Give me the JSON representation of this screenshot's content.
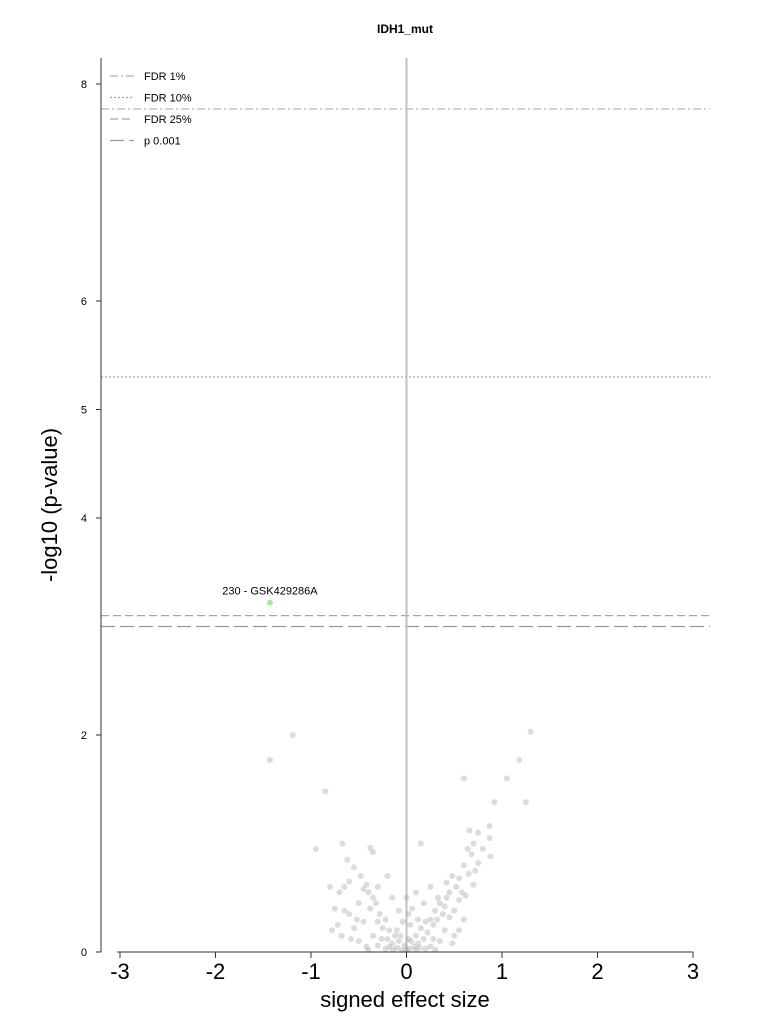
{
  "chart_data": {
    "type": "scatter",
    "title": "IDH1_mut",
    "xlabel": "signed effect size",
    "ylabel": "-log10 (p-value)",
    "xlim": [
      -3.15,
      3.2
    ],
    "ylim": [
      0,
      8.25
    ],
    "x_ticks": [
      "-3",
      "-2",
      "-1",
      "0",
      "1",
      "2",
      "3"
    ],
    "y_ticks": [
      "0",
      "2",
      "4",
      "5",
      "6",
      "8"
    ],
    "grid": false,
    "legend_position": "top-left",
    "thresholds": [
      {
        "name": "FDR 1%",
        "y": 7.77,
        "style": "dashdot",
        "color": "#b0b0b0"
      },
      {
        "name": "FDR 10%",
        "y": 5.3,
        "style": "dotted",
        "color": "#a0a0a0"
      },
      {
        "name": "FDR 25%",
        "y": 3.1,
        "style": "dashed",
        "color": "#a8a8a8"
      },
      {
        "name": "p 0.001",
        "y": 3.0,
        "style": "longdash",
        "color": "#999999"
      }
    ],
    "highlight": {
      "x": -1.43,
      "y": 3.22,
      "label": "230 - GSK429286A",
      "color": "#a6e8a0"
    },
    "points": [
      [
        -1.43,
        1.77
      ],
      [
        -1.19,
        2.0
      ],
      [
        -0.85,
        1.48
      ],
      [
        -0.95,
        0.95
      ],
      [
        -0.67,
        1.0
      ],
      [
        -0.38,
        0.96
      ],
      [
        -0.35,
        0.92
      ],
      [
        0.15,
        1.0
      ],
      [
        0.6,
        1.6
      ],
      [
        1.05,
        1.6
      ],
      [
        1.3,
        2.03
      ],
      [
        1.18,
        1.77
      ],
      [
        1.25,
        1.38
      ],
      [
        0.92,
        1.38
      ],
      [
        0.87,
        1.16
      ],
      [
        0.87,
        1.05
      ],
      [
        0.88,
        0.88
      ],
      [
        0.75,
        1.1
      ],
      [
        0.7,
        1.0
      ],
      [
        0.66,
        1.12
      ],
      [
        0.68,
        0.9
      ],
      [
        0.6,
        0.8
      ],
      [
        0.65,
        0.72
      ],
      [
        0.55,
        0.68
      ],
      [
        0.52,
        0.6
      ],
      [
        0.48,
        0.7
      ],
      [
        0.45,
        0.55
      ],
      [
        0.42,
        0.5
      ],
      [
        0.4,
        0.42
      ],
      [
        0.38,
        0.35
      ],
      [
        0.35,
        0.45
      ],
      [
        0.32,
        0.3
      ],
      [
        0.3,
        0.38
      ],
      [
        0.28,
        0.25
      ],
      [
        0.25,
        0.3
      ],
      [
        0.22,
        0.18
      ],
      [
        0.2,
        0.28
      ],
      [
        0.18,
        0.12
      ],
      [
        0.15,
        0.22
      ],
      [
        0.12,
        0.08
      ],
      [
        0.1,
        0.15
      ],
      [
        0.08,
        0.05
      ],
      [
        0.05,
        0.1
      ],
      [
        0.03,
        0.03
      ],
      [
        0.02,
        0.12
      ],
      [
        0.0,
        0.02
      ],
      [
        -0.02,
        0.06
      ],
      [
        -0.05,
        0.02
      ],
      [
        -0.08,
        0.1
      ],
      [
        -0.1,
        0.04
      ],
      [
        -0.12,
        0.15
      ],
      [
        -0.15,
        0.08
      ],
      [
        -0.18,
        0.2
      ],
      [
        -0.2,
        0.12
      ],
      [
        -0.22,
        0.3
      ],
      [
        -0.25,
        0.22
      ],
      [
        -0.28,
        0.35
      ],
      [
        -0.3,
        0.28
      ],
      [
        -0.32,
        0.45
      ],
      [
        -0.35,
        0.5
      ],
      [
        -0.38,
        0.4
      ],
      [
        -0.4,
        0.55
      ],
      [
        -0.42,
        0.62
      ],
      [
        -0.45,
        0.58
      ],
      [
        -0.48,
        0.7
      ],
      [
        -0.5,
        0.45
      ],
      [
        -0.55,
        0.78
      ],
      [
        -0.6,
        0.65
      ],
      [
        -0.62,
        0.85
      ],
      [
        -0.65,
        0.6
      ],
      [
        -0.7,
        0.55
      ],
      [
        -0.75,
        0.4
      ],
      [
        -0.8,
        0.6
      ],
      [
        -0.72,
        0.25
      ],
      [
        -0.68,
        0.15
      ],
      [
        -0.6,
        0.35
      ],
      [
        -0.55,
        0.22
      ],
      [
        -0.5,
        0.1
      ],
      [
        -0.45,
        0.28
      ],
      [
        -0.42,
        0.05
      ],
      [
        -0.35,
        0.15
      ],
      [
        -0.3,
        0.06
      ],
      [
        -0.26,
        0.12
      ],
      [
        -0.22,
        0.03
      ],
      [
        -0.18,
        0.05
      ],
      [
        -0.14,
        0.02
      ],
      [
        -0.1,
        0.2
      ],
      [
        -0.06,
        0.15
      ],
      [
        -0.04,
        0.28
      ],
      [
        0.0,
        0.5
      ],
      [
        0.02,
        0.35
      ],
      [
        0.04,
        0.25
      ],
      [
        0.06,
        0.4
      ],
      [
        0.1,
        0.02
      ],
      [
        0.14,
        0.04
      ],
      [
        0.2,
        0.03
      ],
      [
        0.25,
        0.05
      ],
      [
        0.3,
        0.02
      ],
      [
        0.35,
        0.1
      ],
      [
        0.4,
        0.2
      ],
      [
        0.45,
        0.32
      ],
      [
        0.5,
        0.38
      ],
      [
        0.55,
        0.48
      ],
      [
        0.58,
        0.55
      ],
      [
        0.62,
        0.52
      ],
      [
        0.7,
        0.62
      ],
      [
        0.72,
        0.75
      ],
      [
        0.75,
        0.82
      ],
      [
        0.8,
        0.95
      ],
      [
        0.64,
        0.95
      ],
      [
        0.5,
        0.15
      ],
      [
        0.25,
        0.6
      ],
      [
        0.1,
        0.55
      ],
      [
        -0.2,
        0.7
      ],
      [
        -0.3,
        0.6
      ],
      [
        -0.58,
        0.12
      ],
      [
        -0.78,
        0.2
      ],
      [
        -0.4,
        0.02
      ],
      [
        0.33,
        0.5
      ],
      [
        0.42,
        0.64
      ],
      [
        0.12,
        0.3
      ],
      [
        0.18,
        0.45
      ],
      [
        -0.08,
        0.38
      ],
      [
        -0.15,
        0.5
      ],
      [
        0.28,
        0.12
      ],
      [
        0.55,
        0.2
      ],
      [
        0.6,
        0.3
      ],
      [
        0.48,
        0.08
      ],
      [
        -0.65,
        0.38
      ],
      [
        -0.52,
        0.3
      ]
    ]
  }
}
